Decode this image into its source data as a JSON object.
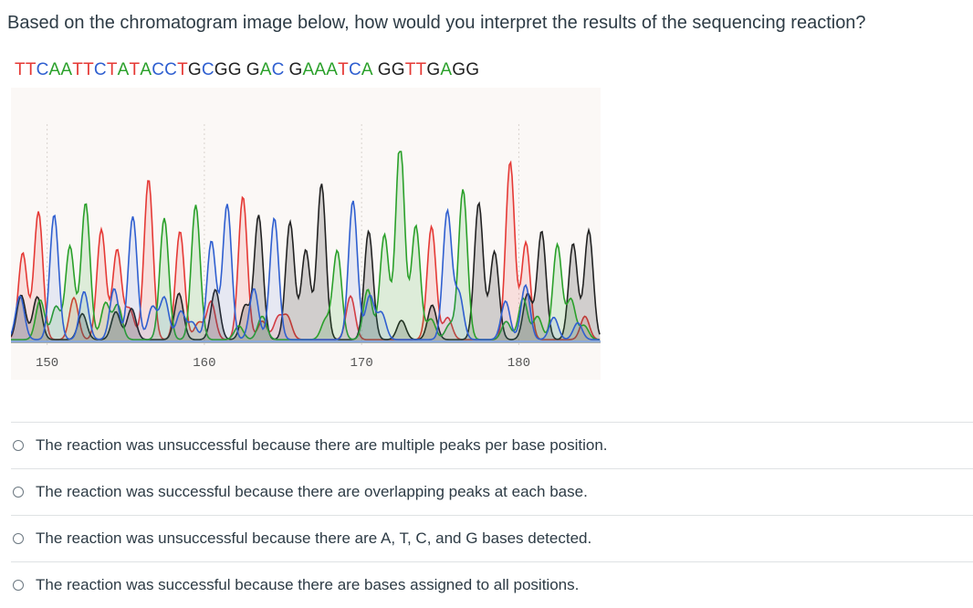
{
  "question": {
    "text": "Based on the chromatogram image below, how would you interpret the results of the sequencing reaction?"
  },
  "chromatogram": {
    "sequence_groups": [
      "TTCAATTCTATACCTGCGG",
      "GAC",
      "GAAATCA",
      "GGTTGAGG"
    ],
    "base_colors": {
      "A": "#2aa02a",
      "T": "#e53935",
      "C": "#2f5fd0",
      "G": "#222222"
    },
    "axis_ticks": [
      "150",
      "160",
      "170",
      "180"
    ],
    "axis_tick_values": [
      150,
      160,
      170,
      180
    ],
    "base_range": [
      147.7,
      185.2
    ],
    "peak_bases": "TTCAATTCTATACCTGCGGGACGAAATCAGGTTGAGG"
  },
  "options": [
    {
      "label": "The reaction was unsuccessful because there are multiple peaks per base position.",
      "selected": false
    },
    {
      "label": "The reaction was successful because there are overlapping peaks at each base.",
      "selected": false
    },
    {
      "label": "The reaction was unsuccessful because there are A, T, C, and G bases detected.",
      "selected": false
    },
    {
      "label": "The reaction was successful because there are bases assigned to all positions.",
      "selected": false
    }
  ]
}
